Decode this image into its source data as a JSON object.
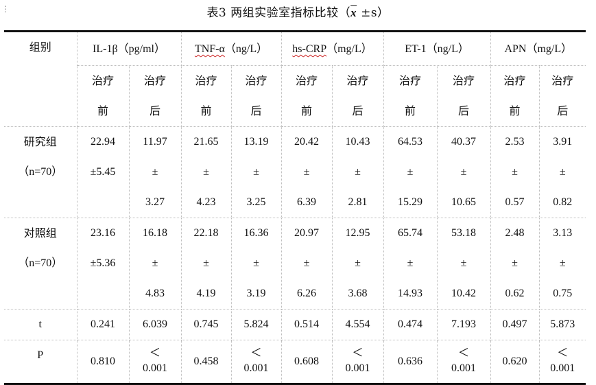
{
  "margin_mark": "⋮",
  "caption": {
    "prefix": "表3  两组实验室指标比较（",
    "xbar": "x",
    "suffix": " ±s）"
  },
  "header": {
    "group_label": "组别",
    "indicators": [
      {
        "name": "IL-1β",
        "unit": "（pg/ml）"
      },
      {
        "name": "TNF-α",
        "unit": "（ng/L）"
      },
      {
        "name": "hs-CRP",
        "unit": "（mg/L）"
      },
      {
        "name": "ET-1",
        "unit": "（ng/L）"
      },
      {
        "name": "APN",
        "unit": "（mg/L）"
      }
    ],
    "before": [
      "治疗",
      "前"
    ],
    "after": [
      "治疗",
      "后"
    ]
  },
  "groups": [
    {
      "name": "研究组",
      "n": "（n=70）",
      "cells": [
        [
          "22.94",
          "±5.45",
          ""
        ],
        [
          "11.97",
          "±",
          "3.27"
        ],
        [
          "21.65",
          "±",
          "4.23"
        ],
        [
          "13.19",
          "±",
          "3.25"
        ],
        [
          "20.42",
          "±",
          "6.39"
        ],
        [
          "10.43",
          "±",
          "2.81"
        ],
        [
          "64.53",
          "±",
          "15.29"
        ],
        [
          "40.37",
          "±",
          "10.65"
        ],
        [
          "2.53",
          "±",
          "0.57"
        ],
        [
          "3.91",
          "±",
          "0.82"
        ]
      ]
    },
    {
      "name": "对照组",
      "n": "（n=70）",
      "cells": [
        [
          "23.16",
          "±5.36",
          ""
        ],
        [
          "16.18",
          "±",
          "4.83"
        ],
        [
          "22.18",
          "±",
          "4.19"
        ],
        [
          "16.36",
          "±",
          "3.19"
        ],
        [
          "20.97",
          "±",
          "6.26"
        ],
        [
          "12.95",
          "±",
          "3.68"
        ],
        [
          "65.74",
          "±",
          "14.93"
        ],
        [
          "53.18",
          "±",
          "10.42"
        ],
        [
          "2.48",
          "±",
          "0.62"
        ],
        [
          "3.13",
          "±",
          "0.75"
        ]
      ]
    }
  ],
  "t_row": {
    "label": "t",
    "values": [
      "0.241",
      "6.039",
      "0.745",
      "5.824",
      "0.514",
      "4.554",
      "0.474",
      "7.193",
      "0.497",
      "5.873"
    ]
  },
  "p_row": {
    "label": "P",
    "values": [
      {
        "value": "0.810"
      },
      {
        "lt": "＜",
        "value": "0.001"
      },
      {
        "value": "0.458"
      },
      {
        "lt": "＜",
        "value": "0.001"
      },
      {
        "value": "0.608"
      },
      {
        "lt": "＜",
        "value": "0.001"
      },
      {
        "value": "0.636"
      },
      {
        "lt": "＜",
        "value": "0.001"
      },
      {
        "value": "0.620"
      },
      {
        "lt": "＜",
        "value": "0.001"
      }
    ]
  }
}
